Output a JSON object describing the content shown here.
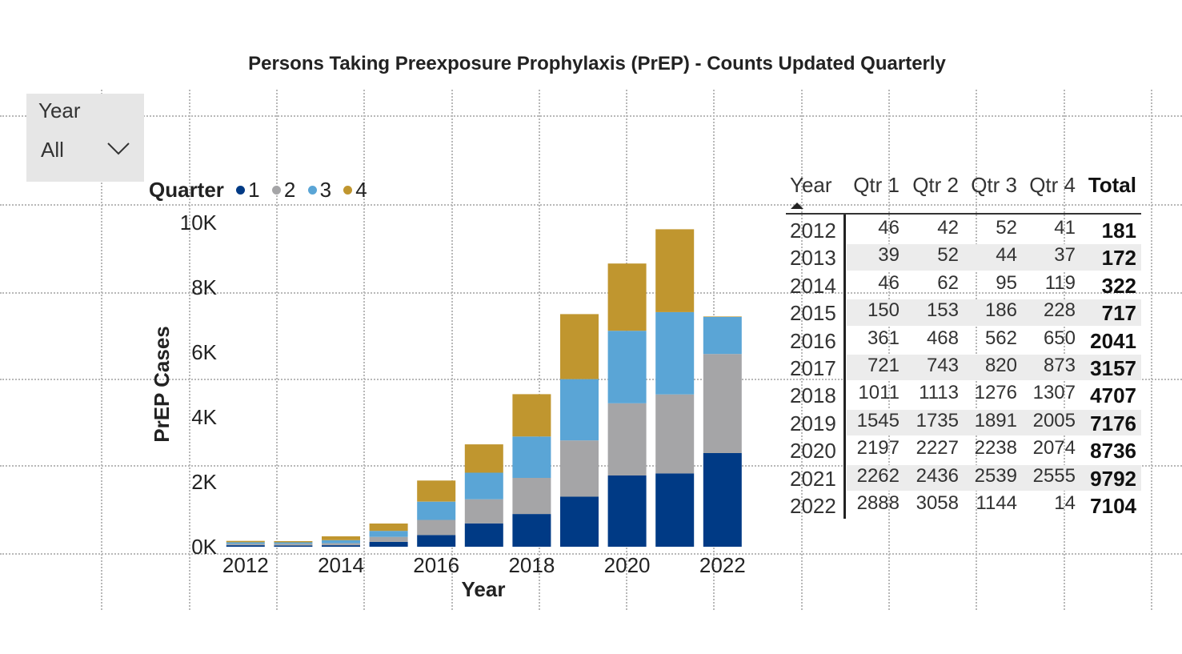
{
  "title": "Persons Taking Preexposure Prophylaxis (PrEP) - Counts Updated Quarterly",
  "slicer": {
    "label": "Year",
    "value": "All",
    "icon": "chevron-down-icon"
  },
  "legend": {
    "title": "Quarter",
    "items": [
      {
        "label": "1",
        "color": "#003a85"
      },
      {
        "label": "2",
        "color": "#a5a5a7"
      },
      {
        "label": "3",
        "color": "#5aa5d6"
      },
      {
        "label": "4",
        "color": "#c0962f"
      }
    ]
  },
  "chart_data": {
    "type": "bar",
    "stacked": true,
    "title": "Persons Taking Preexposure Prophylaxis (PrEP) - Counts Updated Quarterly",
    "xlabel": "Year",
    "ylabel": "PrEP Cases",
    "categories": [
      "2012",
      "2013",
      "2014",
      "2015",
      "2016",
      "2017",
      "2018",
      "2019",
      "2020",
      "2021",
      "2022"
    ],
    "x_tick_labels": [
      "2012",
      "2014",
      "2016",
      "2018",
      "2020",
      "2022"
    ],
    "y_tick_labels": [
      "0K",
      "2K",
      "4K",
      "6K",
      "8K",
      "10K"
    ],
    "ylim": [
      0,
      10000
    ],
    "grid": false,
    "legend_position": "top-left",
    "series": [
      {
        "name": "1",
        "color": "#003a85",
        "values": [
          46,
          39,
          46,
          150,
          361,
          721,
          1011,
          1545,
          2197,
          2262,
          2888
        ]
      },
      {
        "name": "2",
        "color": "#a5a5a7",
        "values": [
          42,
          52,
          62,
          153,
          468,
          743,
          1113,
          1735,
          2227,
          2436,
          3058
        ]
      },
      {
        "name": "3",
        "color": "#5aa5d6",
        "values": [
          52,
          44,
          95,
          186,
          562,
          820,
          1276,
          1891,
          2238,
          2539,
          1144
        ]
      },
      {
        "name": "4",
        "color": "#c0962f",
        "values": [
          41,
          37,
          119,
          228,
          650,
          873,
          1307,
          2005,
          2074,
          2555,
          14
        ]
      }
    ]
  },
  "table": {
    "headers": [
      "Year",
      "Qtr 1",
      "Qtr 2",
      "Qtr 3",
      "Qtr 4",
      "Total"
    ],
    "rows": [
      [
        "2012",
        "46",
        "42",
        "52",
        "41",
        "181"
      ],
      [
        "2013",
        "39",
        "52",
        "44",
        "37",
        "172"
      ],
      [
        "2014",
        "46",
        "62",
        "95",
        "119",
        "322"
      ],
      [
        "2015",
        "150",
        "153",
        "186",
        "228",
        "717"
      ],
      [
        "2016",
        "361",
        "468",
        "562",
        "650",
        "2041"
      ],
      [
        "2017",
        "721",
        "743",
        "820",
        "873",
        "3157"
      ],
      [
        "2018",
        "1011",
        "1113",
        "1276",
        "1307",
        "4707"
      ],
      [
        "2019",
        "1545",
        "1735",
        "1891",
        "2005",
        "7176"
      ],
      [
        "2020",
        "2197",
        "2227",
        "2238",
        "2074",
        "8736"
      ],
      [
        "2021",
        "2262",
        "2436",
        "2539",
        "2555",
        "9792"
      ],
      [
        "2022",
        "2888",
        "3058",
        "1144",
        "14",
        "7104"
      ]
    ]
  }
}
